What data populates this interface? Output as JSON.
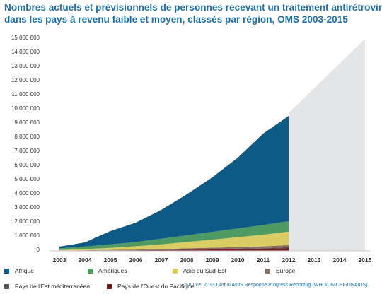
{
  "title_line1": "Nombres actuels et prévisionnels de personnes recevant un traitement antirétroviral",
  "title_line2": "dans les pays à revenu faible et moyen, classés par région, OMS 2003-2015",
  "source": "Source: 2013 Global AIDS Response Progress Reporting (WHO/UNICEF/UNAIDS).",
  "chart_data": {
    "type": "area",
    "stacked": true,
    "title": "",
    "xlabel": "",
    "ylabel": "",
    "x": [
      2003,
      2004,
      2005,
      2006,
      2007,
      2008,
      2009,
      2010,
      2011,
      2012
    ],
    "x_ticks": [
      "2003",
      "2004",
      "2005",
      "2006",
      "2007",
      "2008",
      "2009",
      "2010",
      "2011",
      "2012",
      "2013",
      "2014",
      "2015"
    ],
    "ylim": [
      0,
      15000000
    ],
    "y_ticks": [
      "0",
      "1 000 000",
      "2 000 000",
      "3 000 000",
      "4 000 000",
      "5 000 000",
      "6 000 000",
      "7 000 000",
      "8 000 000",
      "9 000 000",
      "10 000 000",
      "11 000 000",
      "12 000 000",
      "13 000 000",
      "14 000 000",
      "15 000 000"
    ],
    "grid": false,
    "legend_position": "bottom",
    "series": [
      {
        "name": "Pays de l'Ouest du Pacifique",
        "color": "#7b1a1a",
        "values": [
          10000,
          20000,
          30000,
          45000,
          60000,
          80000,
          100000,
          130000,
          160000,
          200000
        ]
      },
      {
        "name": "Pays de l'Est méditerranéen",
        "color": "#555555",
        "values": [
          5000,
          5000,
          10000,
          10000,
          15000,
          20000,
          25000,
          30000,
          40000,
          60000
        ]
      },
      {
        "name": "Europe",
        "color": "#8b6f62",
        "values": [
          15000,
          20000,
          30000,
          40000,
          60000,
          80000,
          100000,
          110000,
          120000,
          150000
        ]
      },
      {
        "name": "Asie du Sud-Est",
        "color": "#d9cd63",
        "values": [
          35000,
          80000,
          140000,
          230000,
          330000,
          450000,
          570000,
          700000,
          830000,
          950000
        ]
      },
      {
        "name": "Amériques",
        "color": "#4f9a62",
        "values": [
          110000,
          180000,
          250000,
          300000,
          400000,
          470000,
          550000,
          620000,
          680000,
          740000
        ]
      },
      {
        "name": "Afrique",
        "color": "#0e5a86",
        "values": [
          125000,
          295000,
          940000,
          1375000,
          2035000,
          2900000,
          3855000,
          5000000,
          6470000,
          7450000
        ]
      }
    ],
    "projection": {
      "color": "#e4e5e6",
      "x": [
        2012,
        2015
      ],
      "y_top": [
        9750000,
        15000000
      ]
    }
  },
  "legend": [
    {
      "label": "Afrique",
      "color": "#0e5a86"
    },
    {
      "label": "Amériques",
      "color": "#4f9a62"
    },
    {
      "label": "Asie du Sud-Est",
      "color": "#d9cd63"
    },
    {
      "label": "Europe",
      "color": "#8b6f62"
    },
    {
      "label": "Pays de l'Est méditerranéen",
      "color": "#555555"
    },
    {
      "label": "Pays de l'Ouest du Pacifique",
      "color": "#7b1a1a"
    }
  ]
}
